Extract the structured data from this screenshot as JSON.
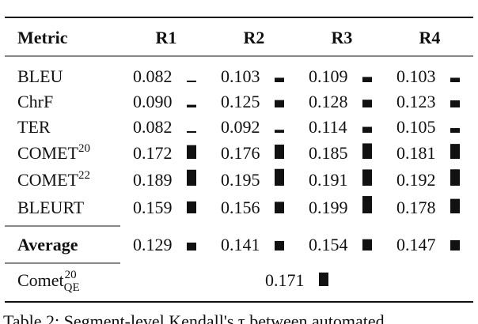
{
  "table": {
    "header": [
      "Metric",
      "R1",
      "R2",
      "R3",
      "R4"
    ],
    "rows": [
      {
        "metric": {
          "text": "BLEU"
        },
        "values": [
          "0.082",
          "0.103",
          "0.109",
          "0.103"
        ]
      },
      {
        "metric": {
          "text": "ChrF"
        },
        "values": [
          "0.090",
          "0.125",
          "0.128",
          "0.123"
        ]
      },
      {
        "metric": {
          "text": "TER"
        },
        "values": [
          "0.082",
          "0.092",
          "0.114",
          "0.105"
        ]
      },
      {
        "metric": {
          "text": "COMET",
          "sup": "20"
        },
        "values": [
          "0.172",
          "0.176",
          "0.185",
          "0.181"
        ]
      },
      {
        "metric": {
          "text": "COMET",
          "sup": "22"
        },
        "values": [
          "0.189",
          "0.195",
          "0.191",
          "0.192"
        ]
      },
      {
        "metric": {
          "text": "BLEURT"
        },
        "values": [
          "0.159",
          "0.156",
          "0.199",
          "0.178"
        ]
      }
    ],
    "average": {
      "label": "Average",
      "values": [
        "0.129",
        "0.141",
        "0.154",
        "0.147"
      ]
    },
    "qe": {
      "metric": {
        "text": "Comet",
        "sup": "20",
        "sub": "QE"
      },
      "value": "0.171"
    }
  },
  "caption": "Table 2: Segment-level Kendall's τ between automated"
}
